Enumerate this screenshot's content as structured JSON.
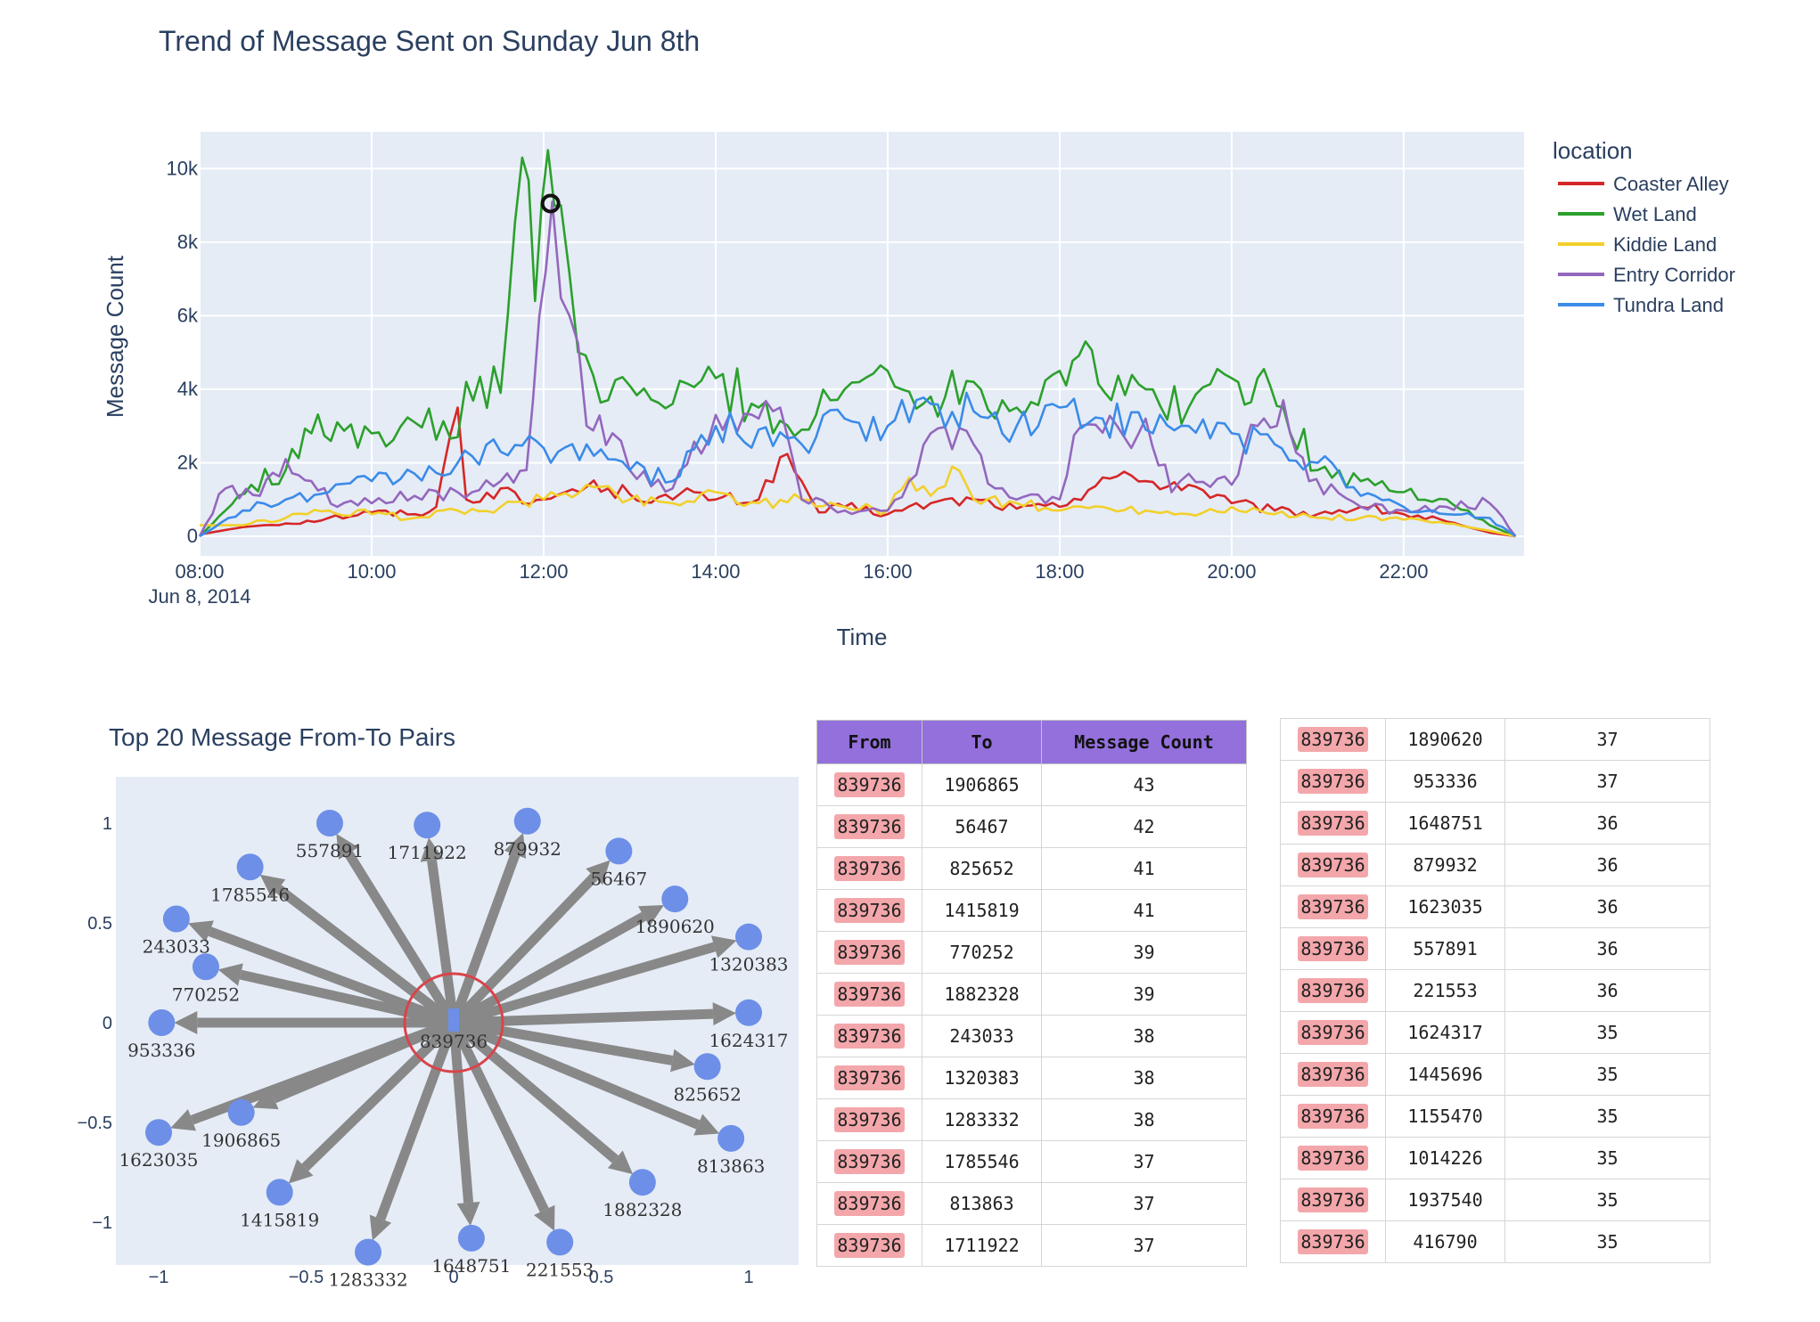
{
  "chart_data": [
    {
      "type": "line",
      "title": "Trend of Message Sent on Sunday Jun 8th",
      "xlabel": "Time",
      "ylabel": "Message Count",
      "x_ticks": [
        "08:00",
        "10:00",
        "12:00",
        "14:00",
        "16:00",
        "18:00",
        "20:00",
        "22:00"
      ],
      "x_tick_sub": "Jun 8, 2014",
      "y_ticks": [
        "0",
        "2k",
        "4k",
        "6k",
        "8k",
        "10k"
      ],
      "ylim": [
        0,
        11000
      ],
      "xlim_hours": [
        8,
        23.4
      ],
      "legend_title": "location",
      "legend_position": "right",
      "marker": {
        "x": "12:05",
        "y": 9050
      },
      "series": [
        {
          "name": "Coaster Alley",
          "color": "#d62728",
          "points": [
            [
              8,
              50
            ],
            [
              8.5,
              250
            ],
            [
              9,
              350
            ],
            [
              9.5,
              500
            ],
            [
              10,
              650
            ],
            [
              10.5,
              600
            ],
            [
              10.75,
              800
            ],
            [
              11,
              3500
            ],
            [
              11.1,
              1000
            ],
            [
              11.5,
              1300
            ],
            [
              11.75,
              900
            ],
            [
              12,
              1000
            ],
            [
              12.25,
              1200
            ],
            [
              12.5,
              1350
            ],
            [
              12.75,
              1300
            ],
            [
              13,
              1150
            ],
            [
              13.5,
              1000
            ],
            [
              13.75,
              1200
            ],
            [
              14,
              1000
            ],
            [
              14.5,
              1000
            ],
            [
              14.75,
              2150
            ],
            [
              15,
              1500
            ],
            [
              15.2,
              650
            ],
            [
              15.5,
              800
            ],
            [
              16,
              600
            ],
            [
              16.5,
              900
            ],
            [
              17,
              1000
            ],
            [
              17.5,
              750
            ],
            [
              18,
              800
            ],
            [
              18.5,
              1600
            ],
            [
              19,
              1500
            ],
            [
              19.5,
              1400
            ],
            [
              20,
              900
            ],
            [
              20.5,
              700
            ],
            [
              21,
              600
            ],
            [
              21.5,
              800
            ],
            [
              22,
              600
            ],
            [
              22.5,
              400
            ],
            [
              23,
              100
            ],
            [
              23.3,
              0
            ]
          ]
        },
        {
          "name": "Wet Land",
          "color": "#2ca02c",
          "points": [
            [
              8,
              0
            ],
            [
              8.3,
              700
            ],
            [
              8.6,
              1400
            ],
            [
              9,
              1800
            ],
            [
              9.3,
              2800
            ],
            [
              9.6,
              3100
            ],
            [
              10,
              2800
            ],
            [
              10.5,
              3100
            ],
            [
              11,
              2700
            ],
            [
              11.1,
              4200
            ],
            [
              11.5,
              3900
            ],
            [
              11.75,
              10300
            ],
            [
              11.9,
              6400
            ],
            [
              12.05,
              10500
            ],
            [
              12.2,
              9000
            ],
            [
              12.4,
              5000
            ],
            [
              12.75,
              3700
            ],
            [
              13,
              4100
            ],
            [
              13.5,
              3600
            ],
            [
              14,
              4300
            ],
            [
              14.5,
              3500
            ],
            [
              15,
              2900
            ],
            [
              15.5,
              4000
            ],
            [
              16,
              4500
            ],
            [
              16.5,
              3800
            ],
            [
              17,
              4200
            ],
            [
              17.5,
              3500
            ],
            [
              18,
              4500
            ],
            [
              18.3,
              5300
            ],
            [
              18.6,
              3700
            ],
            [
              19,
              4000
            ],
            [
              19.5,
              3500
            ],
            [
              20,
              4300
            ],
            [
              20.3,
              4300
            ],
            [
              20.6,
              3500
            ],
            [
              21,
              1800
            ],
            [
              21.5,
              1500
            ],
            [
              22,
              1200
            ],
            [
              22.5,
              1000
            ],
            [
              23,
              300
            ],
            [
              23.3,
              0
            ]
          ]
        },
        {
          "name": "Kiddie Land",
          "color": "#f2d02a",
          "points": [
            [
              8,
              300
            ],
            [
              8.5,
              300
            ],
            [
              9,
              500
            ],
            [
              9.5,
              700
            ],
            [
              10,
              600
            ],
            [
              10.5,
              500
            ],
            [
              11,
              700
            ],
            [
              11.5,
              800
            ],
            [
              12,
              1000
            ],
            [
              12.5,
              1400
            ],
            [
              13,
              1000
            ],
            [
              13.5,
              900
            ],
            [
              14,
              1200
            ],
            [
              14.5,
              900
            ],
            [
              15,
              1000
            ],
            [
              15.5,
              800
            ],
            [
              16,
              700
            ],
            [
              16.25,
              1600
            ],
            [
              16.5,
              1100
            ],
            [
              16.75,
              1900
            ],
            [
              17,
              1000
            ],
            [
              17.5,
              900
            ],
            [
              18,
              700
            ],
            [
              18.5,
              800
            ],
            [
              19,
              700
            ],
            [
              19.5,
              600
            ],
            [
              20,
              800
            ],
            [
              20.5,
              600
            ],
            [
              21,
              500
            ],
            [
              21.5,
              500
            ],
            [
              22,
              450
            ],
            [
              22.5,
              350
            ],
            [
              23,
              150
            ],
            [
              23.3,
              0
            ]
          ]
        },
        {
          "name": "Entry Corridor",
          "color": "#9467bd",
          "points": [
            [
              8,
              0
            ],
            [
              8.3,
              1300
            ],
            [
              8.7,
              1100
            ],
            [
              9,
              2100
            ],
            [
              9.3,
              1500
            ],
            [
              9.6,
              800
            ],
            [
              10,
              900
            ],
            [
              10.5,
              1100
            ],
            [
              11,
              1200
            ],
            [
              11.5,
              1500
            ],
            [
              11.8,
              1800
            ],
            [
              12.1,
              9100
            ],
            [
              12.3,
              6000
            ],
            [
              12.5,
              3000
            ],
            [
              12.8,
              2800
            ],
            [
              13,
              1800
            ],
            [
              13.5,
              1300
            ],
            [
              14,
              3300
            ],
            [
              14.5,
              3200
            ],
            [
              14.75,
              3500
            ],
            [
              15,
              1000
            ],
            [
              15.5,
              700
            ],
            [
              16,
              700
            ],
            [
              16.25,
              1500
            ],
            [
              16.5,
              2800
            ],
            [
              17,
              2500
            ],
            [
              17.25,
              1300
            ],
            [
              17.5,
              1000
            ],
            [
              18,
              1000
            ],
            [
              18.25,
              3000
            ],
            [
              18.75,
              2700
            ],
            [
              19,
              3200
            ],
            [
              19.3,
              1200
            ],
            [
              19.5,
              1700
            ],
            [
              20,
              1400
            ],
            [
              20.3,
              3000
            ],
            [
              20.6,
              3700
            ],
            [
              20.9,
              1500
            ],
            [
              21.5,
              800
            ],
            [
              22,
              700
            ],
            [
              22.5,
              800
            ],
            [
              23,
              900
            ],
            [
              23.3,
              0
            ]
          ]
        },
        {
          "name": "Tundra Land",
          "color": "#3b8be8",
          "points": [
            [
              8,
              0
            ],
            [
              8.5,
              700
            ],
            [
              9,
              1000
            ],
            [
              9.5,
              1200
            ],
            [
              10,
              1500
            ],
            [
              10.5,
              1700
            ],
            [
              11,
              2000
            ],
            [
              11.5,
              2300
            ],
            [
              12,
              2400
            ],
            [
              12.5,
              2500
            ],
            [
              13,
              1800
            ],
            [
              13.5,
              1500
            ],
            [
              14,
              3000
            ],
            [
              14.5,
              2900
            ],
            [
              15,
              2500
            ],
            [
              15.5,
              3200
            ],
            [
              16,
              3000
            ],
            [
              16.5,
              3600
            ],
            [
              17,
              3400
            ],
            [
              17.5,
              3000
            ],
            [
              18,
              3500
            ],
            [
              18.5,
              3200
            ],
            [
              19,
              2900
            ],
            [
              19.5,
              3000
            ],
            [
              20,
              2800
            ],
            [
              20.5,
              2500
            ],
            [
              21,
              2000
            ],
            [
              21.5,
              1100
            ],
            [
              22,
              800
            ],
            [
              22.5,
              600
            ],
            [
              23,
              500
            ],
            [
              23.3,
              0
            ]
          ]
        }
      ]
    },
    {
      "type": "network",
      "title": "Top 20 Message From-To Pairs",
      "x_ticks": [
        "−1",
        "−0.5",
        "0",
        "0.5",
        "1"
      ],
      "y_ticks": [
        "1",
        "0.5",
        "0",
        "−0.5",
        "−1"
      ],
      "xlim": [
        -1.05,
        1.2
      ],
      "ylim": [
        -1.22,
        1.12
      ],
      "center": {
        "id": "839736",
        "x": 0,
        "y": 0
      },
      "nodes": [
        {
          "id": "557891",
          "x": -0.42,
          "y": 1.0
        },
        {
          "id": "1711922",
          "x": -0.09,
          "y": 0.99
        },
        {
          "id": "879932",
          "x": 0.25,
          "y": 1.01
        },
        {
          "id": "56467",
          "x": 0.56,
          "y": 0.86
        },
        {
          "id": "1785546",
          "x": -0.69,
          "y": 0.78
        },
        {
          "id": "1890620",
          "x": 0.75,
          "y": 0.62
        },
        {
          "id": "243033",
          "x": -0.94,
          "y": 0.52
        },
        {
          "id": "1320383",
          "x": 1.0,
          "y": 0.43
        },
        {
          "id": "770252",
          "x": -0.84,
          "y": 0.28
        },
        {
          "id": "953336",
          "x": -0.99,
          "y": 0.0
        },
        {
          "id": "1624317",
          "x": 1.0,
          "y": 0.05
        },
        {
          "id": "825652",
          "x": 0.86,
          "y": -0.22
        },
        {
          "id": "1906865",
          "x": -0.72,
          "y": -0.45
        },
        {
          "id": "813863",
          "x": 0.94,
          "y": -0.58
        },
        {
          "id": "1623035",
          "x": -1.0,
          "y": -0.55
        },
        {
          "id": "1882328",
          "x": 0.64,
          "y": -0.8
        },
        {
          "id": "1415819",
          "x": -0.59,
          "y": -0.85
        },
        {
          "id": "221553",
          "x": 0.36,
          "y": -1.1
        },
        {
          "id": "1648751",
          "x": 0.06,
          "y": -1.08
        },
        {
          "id": "1283332",
          "x": -0.29,
          "y": -1.15
        }
      ]
    }
  ],
  "table": {
    "headers": [
      "From",
      "To",
      "Message Count"
    ],
    "left_rows": [
      [
        "839736",
        "1906865",
        "43"
      ],
      [
        "839736",
        "56467",
        "42"
      ],
      [
        "839736",
        "825652",
        "41"
      ],
      [
        "839736",
        "1415819",
        "41"
      ],
      [
        "839736",
        "770252",
        "39"
      ],
      [
        "839736",
        "1882328",
        "39"
      ],
      [
        "839736",
        "243033",
        "38"
      ],
      [
        "839736",
        "1320383",
        "38"
      ],
      [
        "839736",
        "1283332",
        "38"
      ],
      [
        "839736",
        "1785546",
        "37"
      ],
      [
        "839736",
        "813863",
        "37"
      ],
      [
        "839736",
        "1711922",
        "37"
      ]
    ],
    "right_rows": [
      [
        "839736",
        "1890620",
        "37"
      ],
      [
        "839736",
        "953336",
        "37"
      ],
      [
        "839736",
        "1648751",
        "36"
      ],
      [
        "839736",
        "879932",
        "36"
      ],
      [
        "839736",
        "1623035",
        "36"
      ],
      [
        "839736",
        "557891",
        "36"
      ],
      [
        "839736",
        "221553",
        "36"
      ],
      [
        "839736",
        "1624317",
        "35"
      ],
      [
        "839736",
        "1445696",
        "35"
      ],
      [
        "839736",
        "1155470",
        "35"
      ],
      [
        "839736",
        "1014226",
        "35"
      ],
      [
        "839736",
        "1937540",
        "35"
      ],
      [
        "839736",
        "416790",
        "35"
      ]
    ]
  },
  "colors": {
    "plot_bg": "#e5ecf6",
    "grid": "#ffffff",
    "node": "#6d8fe8",
    "edge": "#888888",
    "center_ring": "#d9444a",
    "header_bg": "#9370db",
    "highlight": "#f3a7ab"
  }
}
